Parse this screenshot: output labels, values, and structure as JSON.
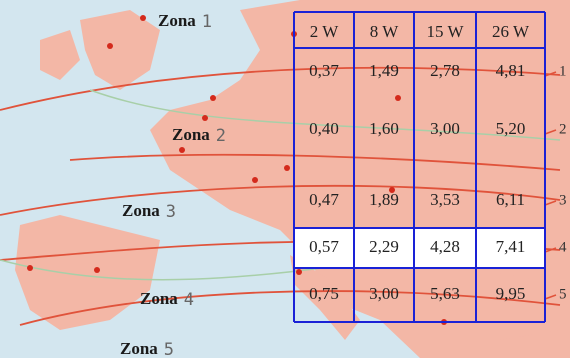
{
  "map": {
    "zones": [
      {
        "label": "Zona",
        "number": "1"
      },
      {
        "label": "Zona",
        "number": "2"
      },
      {
        "label": "Zona",
        "number": "3"
      },
      {
        "label": "Zona",
        "number": "4"
      },
      {
        "label": "Zona",
        "number": "5"
      }
    ]
  },
  "table": {
    "header": [
      "2 W",
      "8 W",
      "15 W",
      "26 W"
    ],
    "rows": [
      [
        "0,37",
        "1,49",
        "2,78",
        "4,81"
      ],
      [
        "0,40",
        "1,60",
        "3,00",
        "5,20"
      ],
      [
        "0,47",
        "1,89",
        "3,53",
        "6,11"
      ],
      [
        "0,57",
        "2,29",
        "4,28",
        "7,41"
      ],
      [
        "0,75",
        "3,00",
        "5,63",
        "9,95"
      ]
    ],
    "row_markers": [
      "1",
      "2",
      "3",
      "4",
      "5"
    ]
  }
}
